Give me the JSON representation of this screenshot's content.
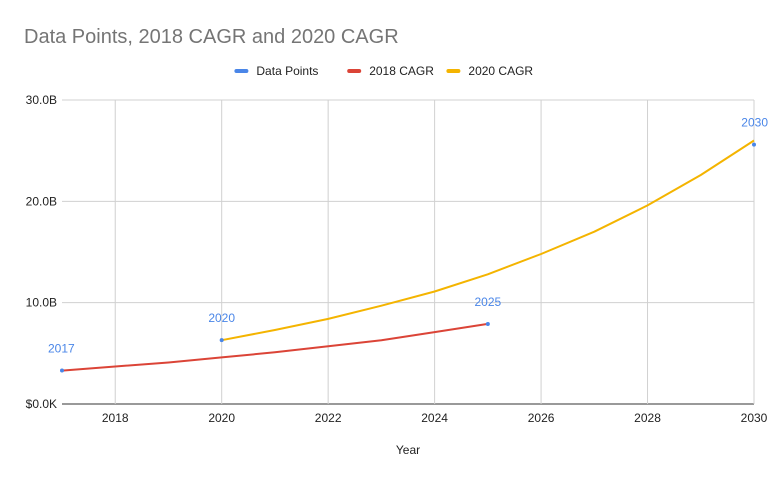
{
  "chart_data": {
    "type": "line",
    "title": "Data Points, 2018 CAGR and 2020 CAGR",
    "xlabel": "Year",
    "ylabel": "",
    "xlim": [
      2017,
      2030
    ],
    "ylim": [
      0,
      30
    ],
    "x_ticks": [
      "2018",
      "2020",
      "2022",
      "2024",
      "2026",
      "2028",
      "2030"
    ],
    "y_ticks": [
      "$0.0K",
      "10.0B",
      "20.0B",
      "30.0B"
    ],
    "grid": true,
    "legend_position": "top",
    "series": [
      {
        "name": "Data Points",
        "color": "#4a86e8",
        "points": [
          {
            "x": 2017,
            "y": 3.3,
            "label": "2017"
          },
          {
            "x": 2020,
            "y": 6.3,
            "label": "2020"
          },
          {
            "x": 2025,
            "y": 7.9,
            "label": "2025"
          },
          {
            "x": 2030,
            "y": 25.6,
            "label": "2030"
          }
        ]
      },
      {
        "name": "2018 CAGR",
        "color": "#db4437",
        "x": [
          2017,
          2018,
          2019,
          2020,
          2021,
          2022,
          2023,
          2024,
          2025
        ],
        "y": [
          3.3,
          3.7,
          4.1,
          4.6,
          5.1,
          5.7,
          6.3,
          7.1,
          7.9
        ]
      },
      {
        "name": "2020 CAGR",
        "color": "#f4b400",
        "x": [
          2020,
          2021,
          2022,
          2023,
          2024,
          2025,
          2026,
          2027,
          2028,
          2029,
          2030
        ],
        "y": [
          6.3,
          7.3,
          8.4,
          9.7,
          11.1,
          12.8,
          14.8,
          17.0,
          19.6,
          22.6,
          26.0
        ]
      }
    ]
  }
}
